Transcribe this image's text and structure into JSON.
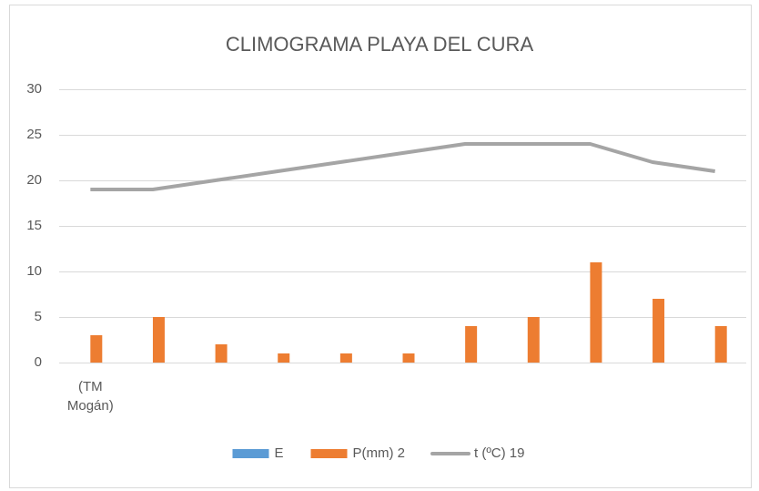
{
  "chart_data": {
    "type": "bar",
    "title": "CLIMOGRAMA PLAYA DEL CURA",
    "categories": [
      "(TM Mogán)",
      null,
      null,
      null,
      null,
      null,
      null,
      null,
      null,
      null,
      null
    ],
    "series": [
      {
        "name": "E",
        "color": "#5b9bd5",
        "values": [
          null,
          null,
          null,
          null,
          null,
          null,
          null,
          null,
          null,
          null,
          null
        ]
      },
      {
        "name": "P(mm) 2",
        "color": "#ed7d31",
        "values": [
          3,
          5,
          2,
          1,
          1,
          1,
          4,
          5,
          11,
          7,
          4
        ]
      },
      {
        "name": "t (ºC) 19",
        "color": "#a5a5a5",
        "type": "line",
        "values": [
          19,
          19,
          20,
          21,
          22,
          23,
          24,
          24,
          24,
          22,
          21
        ]
      }
    ],
    "ylim": [
      0,
      30
    ],
    "yticks": [
      0,
      5,
      10,
      15,
      20,
      25,
      30
    ],
    "grid": true,
    "legend": "bottom"
  }
}
